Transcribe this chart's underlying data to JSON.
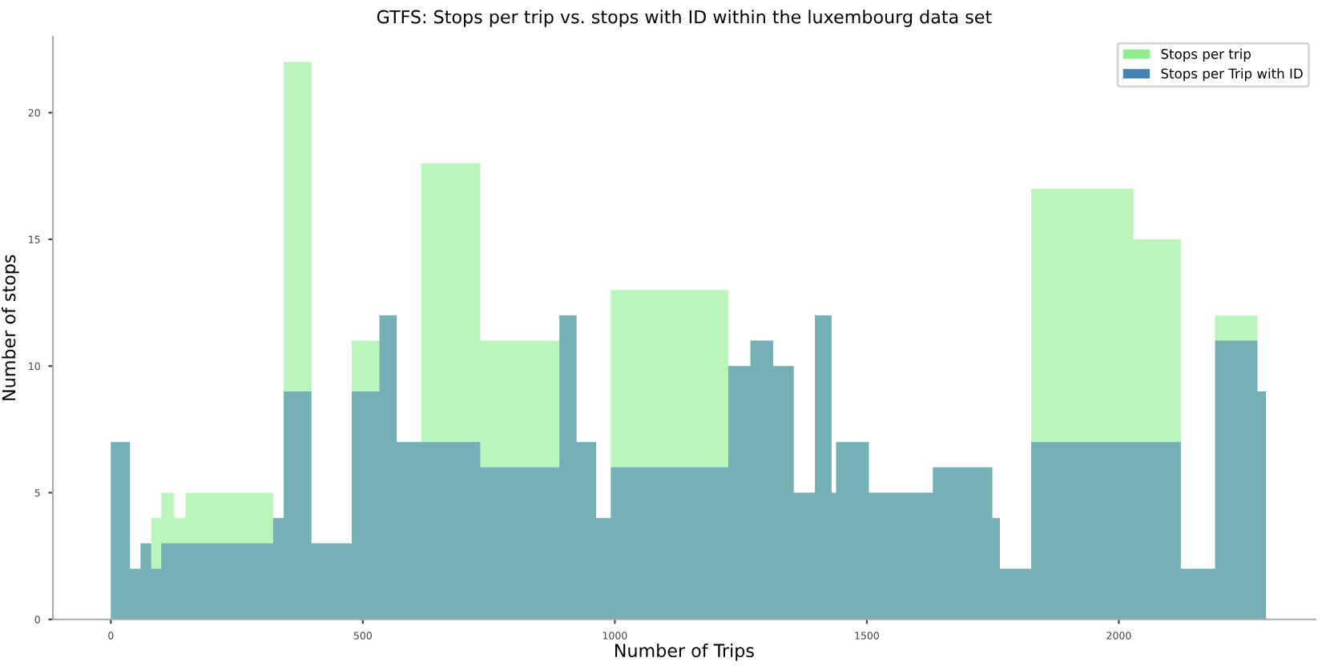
{
  "chart_data": {
    "type": "histogram",
    "title": "GTFS: Stops per trip vs. stops with ID within the luxembourg data set",
    "xlabel": "Number of Trips",
    "ylabel": "Number of stops",
    "bins": [
      0,
      38,
      59,
      80,
      100,
      125,
      148,
      322,
      343,
      398,
      478,
      533,
      567,
      616,
      733,
      890,
      924,
      963,
      992,
      1225,
      1269,
      1314,
      1355,
      1397,
      1430,
      1439,
      1504,
      1631,
      1749,
      1764,
      1826,
      2029,
      2123,
      2191,
      2275,
      2292
    ],
    "series": [
      {
        "name": "Stops per trip",
        "color": "#90ee90",
        "values": [
          7,
          2,
          3,
          4,
          5,
          4,
          5,
          4,
          22,
          3,
          11,
          12,
          7,
          18,
          11,
          12,
          7,
          4,
          13,
          10,
          11,
          10,
          5,
          12,
          5,
          7,
          5,
          6,
          4,
          2,
          17,
          15,
          2,
          12,
          9
        ]
      },
      {
        "name": "Stops per Trip with ID",
        "color": "#4682b4",
        "values": [
          7,
          2,
          3,
          2,
          3,
          3,
          3,
          4,
          9,
          3,
          9,
          12,
          7,
          7,
          6,
          12,
          7,
          4,
          6,
          10,
          11,
          10,
          5,
          12,
          5,
          7,
          5,
          6,
          4,
          2,
          7,
          7,
          2,
          11,
          9
        ]
      }
    ],
    "xlim": [
      -115,
      2390
    ],
    "ylim": [
      0,
      23
    ],
    "xticks": [
      0,
      500,
      1000,
      1500,
      2000
    ],
    "yticks": [
      0,
      5,
      10,
      15,
      20
    ],
    "legend": "top right",
    "grid": false
  }
}
